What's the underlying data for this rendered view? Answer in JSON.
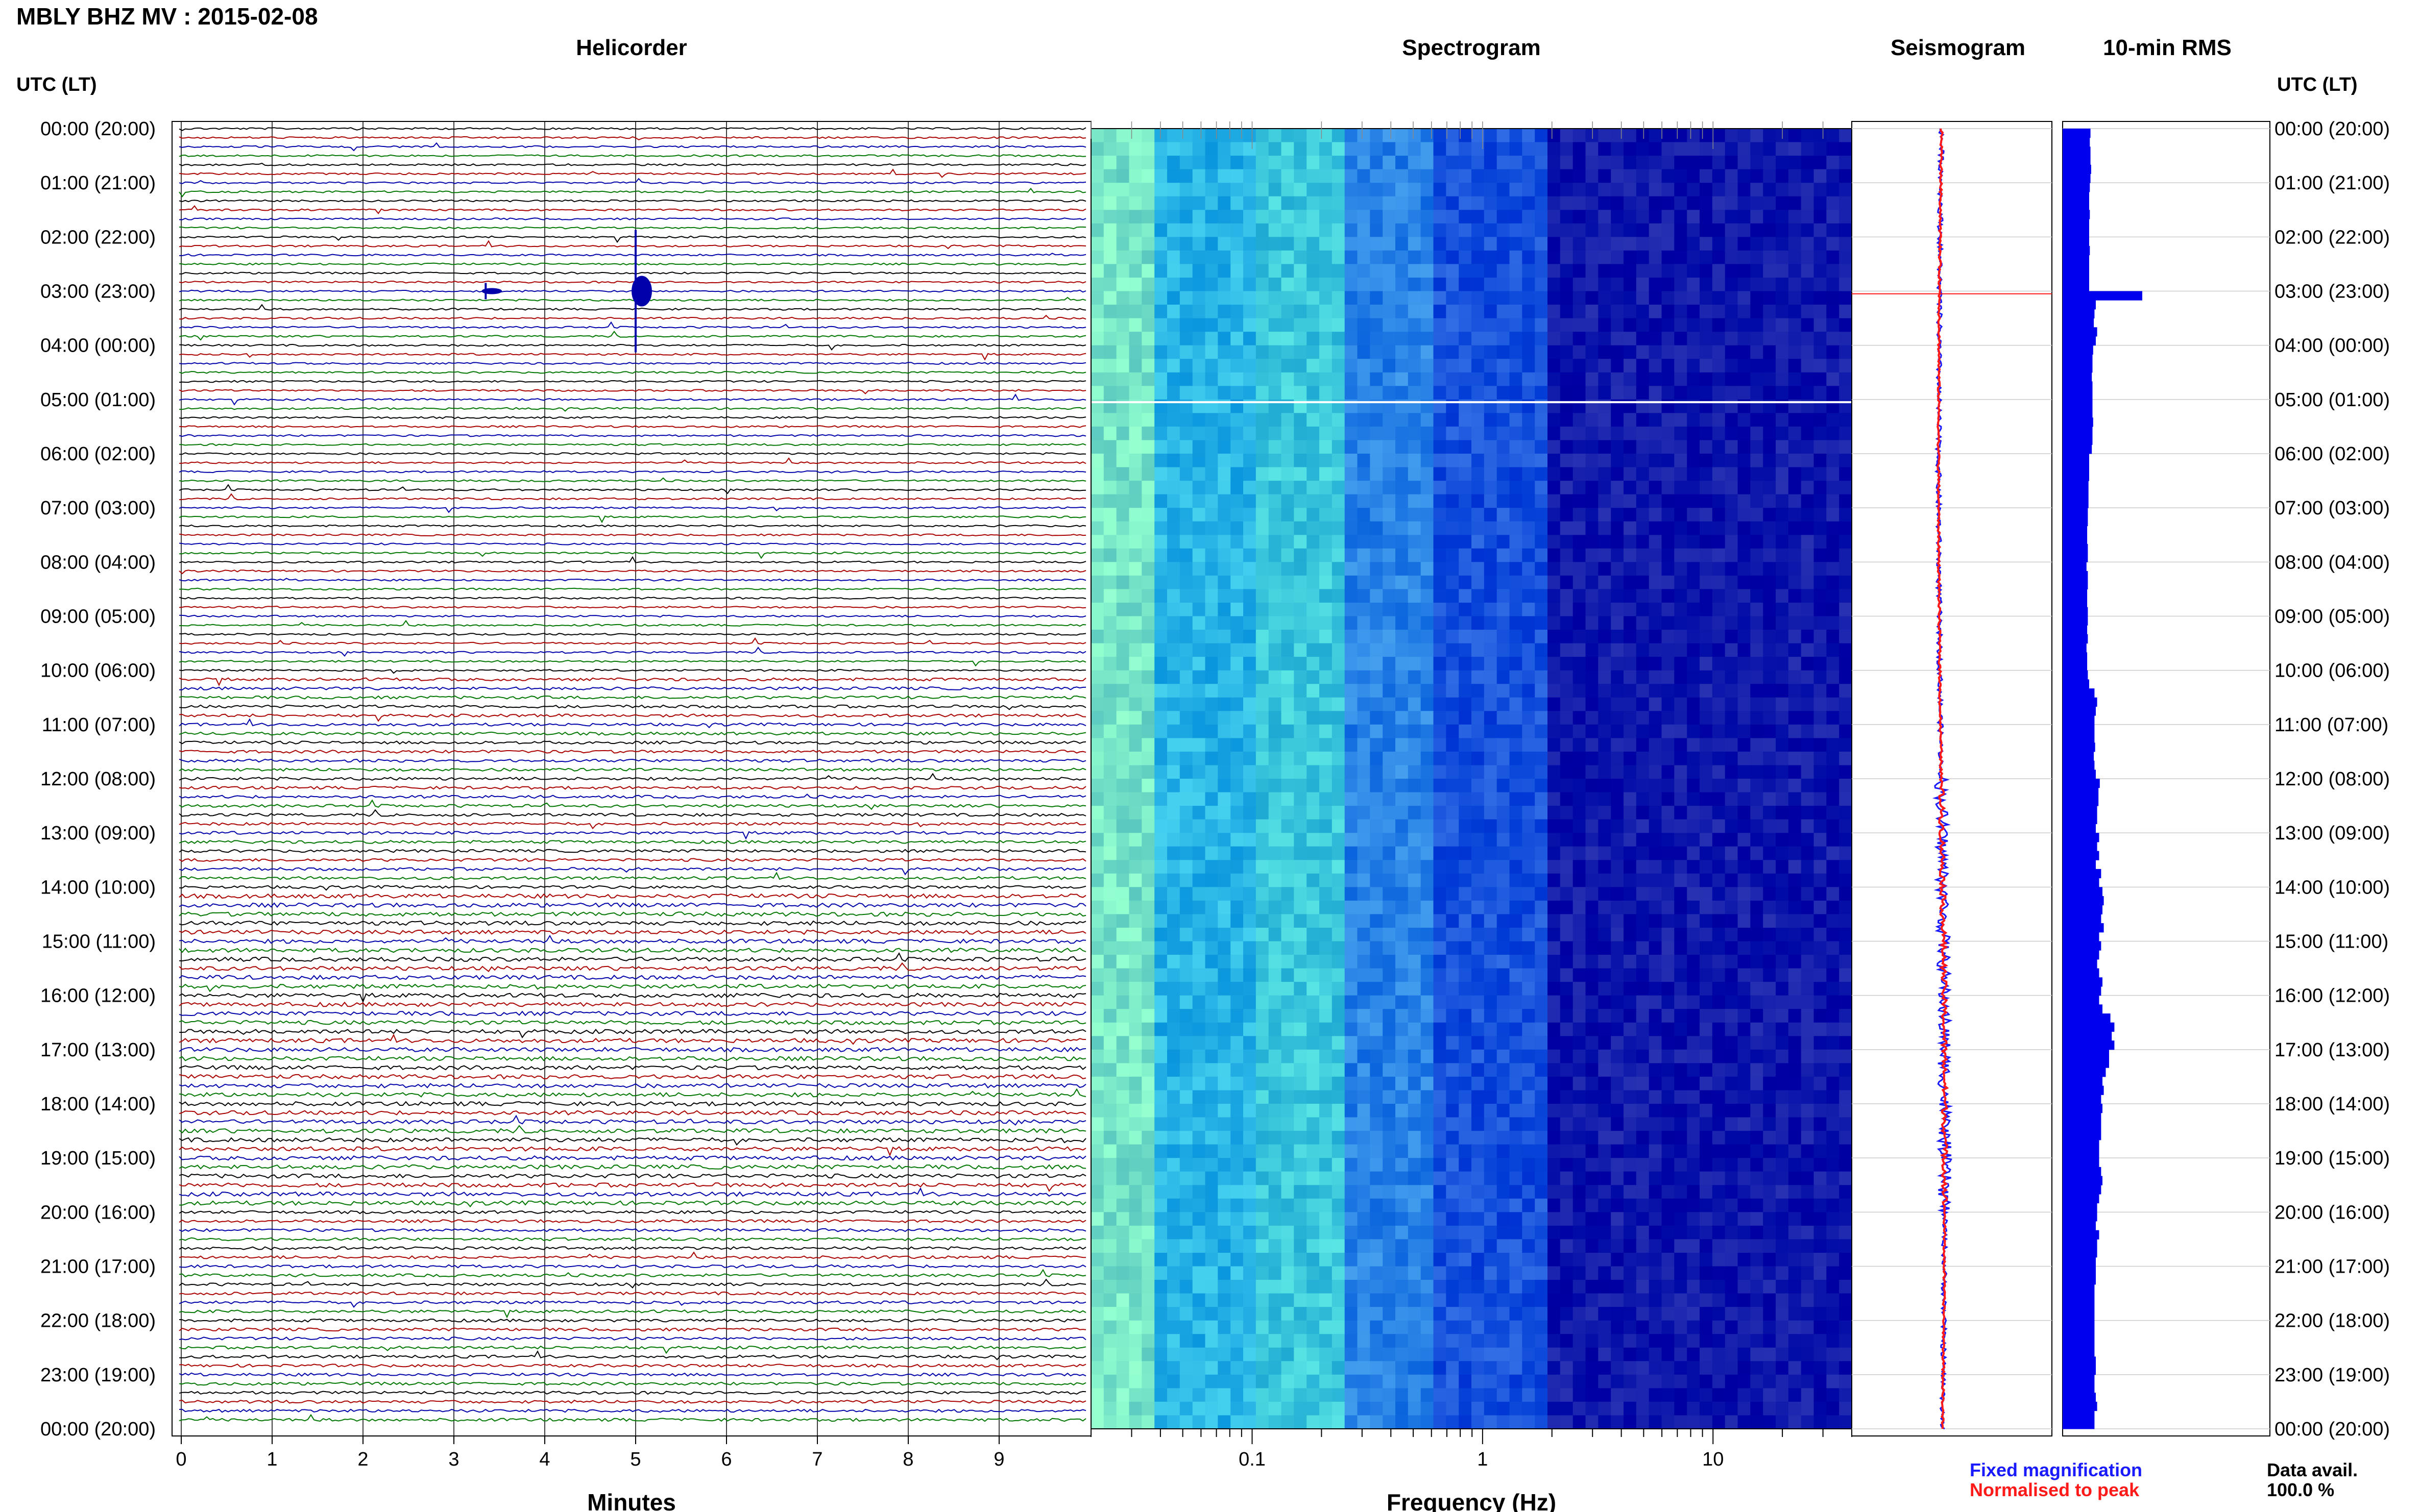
{
  "header": {
    "station_title": "MBLY BHZ MV : 2015-02-08",
    "utc_lt_label": "UTC (LT)",
    "panel_titles": {
      "helicorder": "Helicorder",
      "spectrogram": "Spectrogram",
      "seismogram": "Seismogram",
      "rms": "10-min RMS"
    }
  },
  "time_labels": [
    "00:00 (20:00)",
    "01:00 (21:00)",
    "02:00 (22:00)",
    "03:00 (23:00)",
    "04:00 (00:00)",
    "05:00 (01:00)",
    "06:00 (02:00)",
    "07:00 (03:00)",
    "08:00 (04:00)",
    "09:00 (05:00)",
    "10:00 (06:00)",
    "11:00 (07:00)",
    "12:00 (08:00)",
    "13:00 (09:00)",
    "14:00 (10:00)",
    "15:00 (11:00)",
    "16:00 (12:00)",
    "17:00 (13:00)",
    "18:00 (14:00)",
    "19:00 (15:00)",
    "20:00 (16:00)",
    "21:00 (17:00)",
    "22:00 (18:00)",
    "23:00 (19:00)",
    "00:00 (20:00)"
  ],
  "legend": {
    "fixed": "Fixed magnification",
    "normalised": "Normalised to peak",
    "avail_label": "Data avail.",
    "avail_value": "100.0 %",
    "fixed_color": "#1a1aff",
    "normalised_color": "#ff1a1a"
  },
  "chart_data": [
    {
      "type": "line",
      "title": "Helicorder",
      "xlabel": "Minutes",
      "xticks": [
        "0",
        "1",
        "2",
        "3",
        "4",
        "5",
        "6",
        "7",
        "8",
        "9"
      ],
      "xlim": [
        0,
        10
      ],
      "rows": 144,
      "trace_colors": [
        "#000000",
        "#aa0000",
        "#0000aa",
        "#007700"
      ],
      "events": [
        {
          "time_utc": "03:00",
          "minute": 3.35,
          "amplitude": 0.4
        },
        {
          "time_utc": "03:00",
          "minute": 5.0,
          "amplitude": 3.0
        }
      ]
    },
    {
      "type": "heatmap",
      "title": "Spectrogram",
      "xlabel": "Frequency (Hz)",
      "xscale": "log",
      "xticks": [
        "0.1",
        "1",
        "10"
      ],
      "xlim": [
        0.02,
        40
      ],
      "ylim_utc": [
        "00:00",
        "24:00"
      ]
    },
    {
      "type": "line",
      "title": "Seismogram",
      "series": [
        {
          "name": "Fixed magnification",
          "color": "#1a1aff"
        },
        {
          "name": "Normalised to peak",
          "color": "#ff1a1a"
        }
      ]
    },
    {
      "type": "bar",
      "title": "10-min RMS",
      "orientation": "horizontal",
      "color": "#0000ee",
      "bins": 144,
      "values": [
        0.42,
        0.41,
        0.42,
        0.42,
        0.43,
        0.42,
        0.41,
        0.4,
        0.4,
        0.41,
        0.4,
        0.4,
        0.4,
        0.41,
        0.4,
        0.4,
        0.4,
        0.4,
        1.2,
        0.5,
        0.48,
        0.47,
        0.52,
        0.5,
        0.46,
        0.45,
        0.45,
        0.44,
        0.45,
        0.45,
        0.45,
        0.45,
        0.46,
        0.45,
        0.45,
        0.44,
        0.4,
        0.4,
        0.4,
        0.39,
        0.39,
        0.39,
        0.38,
        0.38,
        0.37,
        0.37,
        0.38,
        0.38,
        0.36,
        0.38,
        0.38,
        0.37,
        0.37,
        0.38,
        0.38,
        0.37,
        0.38,
        0.36,
        0.37,
        0.37,
        0.38,
        0.4,
        0.48,
        0.52,
        0.5,
        0.48,
        0.48,
        0.48,
        0.49,
        0.47,
        0.48,
        0.5,
        0.56,
        0.54,
        0.54,
        0.52,
        0.52,
        0.5,
        0.55,
        0.52,
        0.55,
        0.5,
        0.58,
        0.55,
        0.6,
        0.62,
        0.6,
        0.58,
        0.62,
        0.55,
        0.58,
        0.55,
        0.52,
        0.55,
        0.6,
        0.58,
        0.55,
        0.6,
        0.72,
        0.78,
        0.74,
        0.78,
        0.7,
        0.7,
        0.65,
        0.6,
        0.62,
        0.58,
        0.6,
        0.58,
        0.58,
        0.58,
        0.55,
        0.55,
        0.55,
        0.58,
        0.6,
        0.58,
        0.55,
        0.52,
        0.52,
        0.5,
        0.55,
        0.52,
        0.52,
        0.5,
        0.5,
        0.5,
        0.48,
        0.48,
        0.48,
        0.48,
        0.48,
        0.48,
        0.48,
        0.48,
        0.5,
        0.5,
        0.48,
        0.48,
        0.5,
        0.52,
        0.48,
        0.48
      ],
      "ylim_utc": [
        "00:00",
        "24:00"
      ]
    }
  ]
}
